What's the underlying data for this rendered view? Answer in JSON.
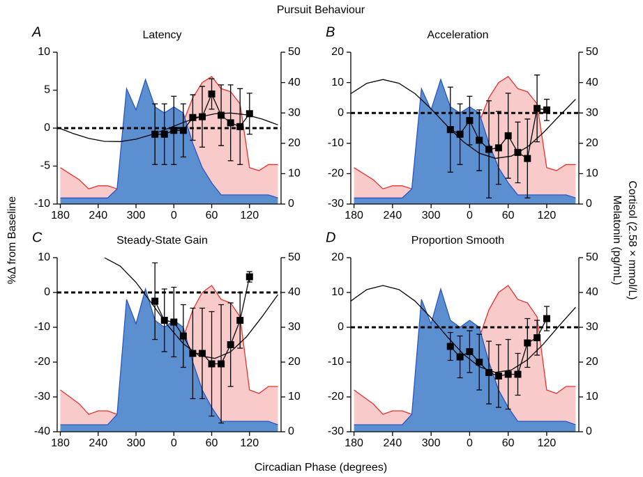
{
  "title": "Pursuit Behaviour",
  "xlabel": "Circadian Phase (degrees)",
  "ylabel": "%Δ from Baseline",
  "y2labels": [
    "Cortisol (2.58 × mmol/L)",
    "Melatonin (pg/mL)"
  ],
  "chart_data": [
    {
      "type": "line",
      "label": "A",
      "title": "Latency",
      "xlim": [
        175,
        530
      ],
      "xticks": [
        180,
        240,
        300,
        {
          "value": 360,
          "label": "0"
        },
        {
          "value": 420,
          "label": "60"
        },
        {
          "value": 480,
          "label": "120"
        }
      ],
      "ylim": [
        -10,
        10
      ],
      "yticks": [
        -10,
        -5,
        0,
        5,
        10
      ],
      "y2lim": [
        0,
        50
      ],
      "y2ticks": [
        0,
        10,
        20,
        30,
        40,
        50
      ],
      "hline": 0,
      "series": [
        {
          "style": "area",
          "axis": "y2",
          "color": "#e8302a",
          "fill": "#f9caca",
          "x": [
            180,
            195,
            210,
            225,
            240,
            255,
            270,
            285,
            300,
            315,
            330,
            345,
            360,
            375,
            390,
            405,
            420,
            435,
            450,
            465,
            480,
            495,
            510,
            525
          ],
          "values": [
            12,
            10,
            8,
            5,
            6,
            6,
            5,
            6,
            4,
            10,
            11,
            14,
            17,
            27,
            35,
            40,
            42,
            38,
            37,
            33,
            12,
            11,
            13,
            13
          ]
        },
        {
          "style": "area",
          "axis": "y2",
          "color": "#2a55c4",
          "fill": "#5b8fd0",
          "x": [
            180,
            195,
            210,
            225,
            240,
            255,
            270,
            285,
            300,
            315,
            330,
            345,
            360,
            375,
            390,
            405,
            420,
            435,
            450,
            465,
            480,
            495,
            510,
            525
          ],
          "values": [
            2,
            2,
            2,
            2,
            2,
            2,
            5,
            38,
            31,
            41,
            32,
            30,
            32,
            30,
            20,
            12,
            7,
            3,
            3,
            3,
            3,
            3,
            3,
            2
          ]
        },
        {
          "style": "line",
          "color": "#000000",
          "x": [
            175,
            200,
            225,
            250,
            275,
            300,
            325,
            350,
            375,
            400,
            425,
            450,
            475,
            500,
            525
          ],
          "values": [
            0.1,
            -0.7,
            -1.36,
            -1.74,
            -1.77,
            -1.46,
            -0.85,
            -0.07,
            0.75,
            1.44,
            1.89,
            1.99,
            1.75,
            1.19,
            0.43
          ]
        },
        {
          "style": "markers",
          "color": "#000000",
          "x": [
            330,
            345,
            360,
            375,
            390,
            405,
            420,
            435,
            450,
            465,
            480
          ],
          "values": [
            -0.8,
            -0.8,
            -0.3,
            -0.3,
            1.4,
            1.5,
            4.5,
            1.7,
            0.7,
            0.2,
            1.9
          ],
          "errors": [
            4,
            4,
            4.5,
            3.5,
            3,
            4,
            2,
            4,
            5,
            5,
            2.7
          ]
        }
      ]
    },
    {
      "type": "line",
      "label": "B",
      "title": "Acceleration",
      "xlim": [
        175,
        530
      ],
      "xticks": [
        180,
        240,
        300,
        {
          "value": 360,
          "label": "0"
        },
        {
          "value": 420,
          "label": "60"
        },
        {
          "value": 480,
          "label": "120"
        }
      ],
      "ylim": [
        -30,
        20
      ],
      "yticks": [
        -30,
        -20,
        -10,
        0,
        10,
        20
      ],
      "y2lim": [
        0,
        50
      ],
      "y2ticks": [
        0,
        10,
        20,
        30,
        40,
        50
      ],
      "hline": 0,
      "series": [
        {
          "style": "area",
          "axis": "y2",
          "color": "#e8302a",
          "fill": "#f9caca",
          "x": [
            180,
            195,
            210,
            225,
            240,
            255,
            270,
            285,
            300,
            315,
            330,
            345,
            360,
            375,
            390,
            405,
            420,
            435,
            450,
            465,
            480,
            495,
            510,
            525
          ],
          "values": [
            12,
            10,
            8,
            5,
            6,
            6,
            5,
            6,
            4,
            10,
            11,
            14,
            17,
            27,
            35,
            40,
            42,
            38,
            37,
            33,
            12,
            11,
            13,
            13
          ]
        },
        {
          "style": "area",
          "axis": "y2",
          "color": "#2a55c4",
          "fill": "#5b8fd0",
          "x": [
            180,
            195,
            210,
            225,
            240,
            255,
            270,
            285,
            300,
            315,
            330,
            345,
            360,
            375,
            390,
            405,
            420,
            435,
            450,
            465,
            480,
            495,
            510,
            525
          ],
          "values": [
            2,
            2,
            2,
            2,
            2,
            2,
            5,
            38,
            31,
            41,
            32,
            30,
            32,
            30,
            20,
            12,
            7,
            3,
            3,
            3,
            3,
            3,
            3,
            2
          ]
        },
        {
          "style": "line",
          "color": "#000000",
          "x": [
            175,
            200,
            225,
            250,
            275,
            300,
            325,
            350,
            375,
            400,
            425,
            450,
            475,
            500,
            525
          ],
          "values": [
            6.36,
            9.78,
            11,
            9.78,
            6.36,
            1.37,
            -4.26,
            -9.46,
            -13.26,
            -14.95,
            -14.22,
            -11.19,
            -6.45,
            -0.87,
            4.5
          ]
        },
        {
          "style": "markers",
          "color": "#000000",
          "x": [
            330,
            345,
            360,
            375,
            390,
            405,
            420,
            435,
            450,
            465,
            480
          ],
          "values": [
            -5.5,
            -7,
            -2.5,
            -9,
            -12,
            -11.5,
            -7.5,
            -13,
            -15,
            1.5,
            1
          ],
          "errors": [
            14,
            10,
            8,
            10,
            16,
            12,
            14,
            10,
            13,
            11,
            3.5
          ]
        }
      ]
    },
    {
      "type": "line",
      "label": "C",
      "title": "Steady-State Gain",
      "xlim": [
        175,
        530
      ],
      "xticks": [
        180,
        240,
        300,
        {
          "value": 360,
          "label": "0"
        },
        {
          "value": 420,
          "label": "60"
        },
        {
          "value": 480,
          "label": "120"
        }
      ],
      "ylim": [
        -40,
        10
      ],
      "yticks": [
        -40,
        -30,
        -20,
        -10,
        0,
        10
      ],
      "y2lim": [
        0,
        50
      ],
      "y2ticks": [
        0,
        10,
        20,
        30,
        40,
        50
      ],
      "hline": 0,
      "series": [
        {
          "style": "area",
          "axis": "y2",
          "color": "#e8302a",
          "fill": "#f9caca",
          "x": [
            180,
            195,
            210,
            225,
            240,
            255,
            270,
            285,
            300,
            315,
            330,
            345,
            360,
            375,
            390,
            405,
            420,
            435,
            450,
            465,
            480,
            495,
            510,
            525
          ],
          "values": [
            12,
            10,
            8,
            5,
            6,
            6,
            5,
            6,
            4,
            10,
            11,
            14,
            17,
            27,
            35,
            40,
            42,
            38,
            37,
            33,
            12,
            11,
            13,
            13
          ]
        },
        {
          "style": "area",
          "axis": "y2",
          "color": "#2a55c4",
          "fill": "#5b8fd0",
          "x": [
            180,
            195,
            210,
            225,
            240,
            255,
            270,
            285,
            300,
            315,
            330,
            345,
            360,
            375,
            390,
            405,
            420,
            435,
            450,
            465,
            480,
            495,
            510,
            525
          ],
          "values": [
            2,
            2,
            2,
            2,
            2,
            2,
            5,
            38,
            31,
            41,
            32,
            30,
            32,
            30,
            20,
            12,
            7,
            3,
            3,
            3,
            3,
            3,
            3,
            2
          ]
        },
        {
          "style": "line",
          "color": "#000000",
          "x": [
            250,
            275,
            300,
            325,
            350,
            375,
            400,
            425,
            450,
            475,
            500,
            525
          ],
          "values": [
            9.98,
            7.56,
            2.9,
            -3.13,
            -9.39,
            -14.72,
            -18.12,
            -18.94,
            -17.04,
            -12.78,
            -6.94,
            -0.62
          ]
        },
        {
          "style": "markers",
          "color": "#000000",
          "x": [
            330,
            345,
            360,
            375,
            390,
            405,
            420,
            435,
            450,
            465,
            480
          ],
          "values": [
            -2.5,
            -8,
            -8.5,
            -12.5,
            -17.5,
            -17.5,
            -20.5,
            -20.5,
            -15,
            -8,
            4.5
          ],
          "errors": [
            11,
            9,
            10,
            9,
            13,
            13,
            15,
            17,
            12,
            8,
            1.5
          ]
        }
      ]
    },
    {
      "type": "line",
      "label": "D",
      "title": "Proportion Smooth",
      "xlim": [
        175,
        530
      ],
      "xticks": [
        180,
        240,
        300,
        {
          "value": 360,
          "label": "0"
        },
        {
          "value": 420,
          "label": "60"
        },
        {
          "value": 480,
          "label": "120"
        }
      ],
      "ylim": [
        -30,
        20
      ],
      "yticks": [
        -30,
        -20,
        -10,
        0,
        10,
        20
      ],
      "y2lim": [
        0,
        50
      ],
      "y2ticks": [
        0,
        10,
        20,
        30,
        40,
        50
      ],
      "hline": 0,
      "series": [
        {
          "style": "area",
          "axis": "y2",
          "color": "#e8302a",
          "fill": "#f9caca",
          "x": [
            180,
            195,
            210,
            225,
            240,
            255,
            270,
            285,
            300,
            315,
            330,
            345,
            360,
            375,
            390,
            405,
            420,
            435,
            450,
            465,
            480,
            495,
            510,
            525
          ],
          "values": [
            12,
            10,
            8,
            5,
            6,
            6,
            5,
            6,
            4,
            10,
            11,
            14,
            17,
            27,
            35,
            40,
            42,
            38,
            37,
            33,
            12,
            11,
            13,
            13
          ]
        },
        {
          "style": "area",
          "axis": "y2",
          "color": "#2a55c4",
          "fill": "#5b8fd0",
          "x": [
            180,
            195,
            210,
            225,
            240,
            255,
            270,
            285,
            300,
            315,
            330,
            345,
            360,
            375,
            390,
            405,
            420,
            435,
            450,
            465,
            480,
            495,
            510,
            525
          ],
          "values": [
            2,
            2,
            2,
            2,
            2,
            2,
            5,
            38,
            31,
            41,
            32,
            30,
            32,
            30,
            20,
            12,
            7,
            3,
            3,
            3,
            3,
            3,
            3,
            2
          ]
        },
        {
          "style": "line",
          "color": "#000000",
          "x": [
            175,
            200,
            225,
            250,
            275,
            300,
            325,
            350,
            375,
            400,
            425,
            450,
            475,
            500,
            525
          ],
          "values": [
            7.54,
            10.83,
            12,
            10.83,
            7.54,
            2.74,
            -2.68,
            -7.68,
            -11.33,
            -12.95,
            -12.25,
            -9.34,
            -4.78,
            0.59,
            5.75
          ]
        },
        {
          "style": "markers",
          "color": "#000000",
          "x": [
            330,
            345,
            360,
            375,
            390,
            405,
            420,
            435,
            450,
            465,
            480
          ],
          "values": [
            -5.5,
            -8.5,
            -7,
            -10,
            -13,
            -14,
            -13.5,
            -13.5,
            -4.5,
            -3,
            2.5
          ],
          "errors": [
            4,
            6,
            6,
            8,
            9,
            9,
            10,
            6,
            7,
            5,
            3.5
          ]
        }
      ]
    }
  ]
}
